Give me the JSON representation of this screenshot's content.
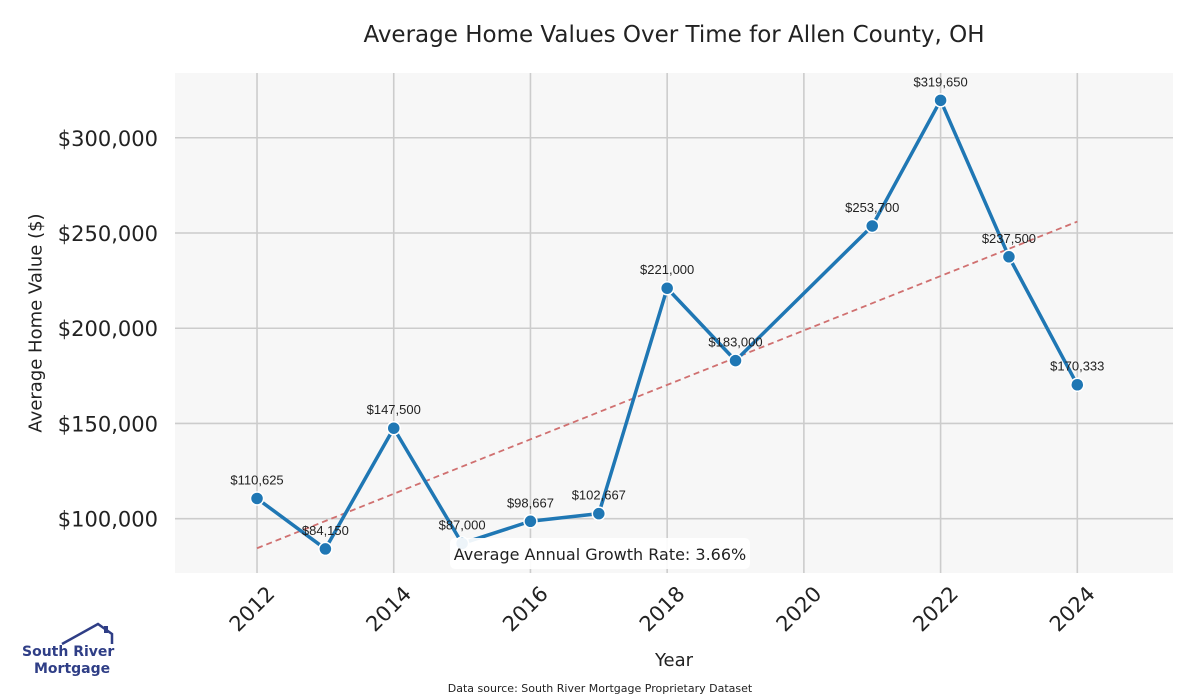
{
  "chart_data": {
    "type": "line",
    "title": "Average Home Values Over Time for Allen County, OH",
    "xlabel": "Year",
    "ylabel": "Average Home Value ($)",
    "x": [
      2012,
      2013,
      2014,
      2015,
      2016,
      2017,
      2018,
      2019,
      2021,
      2022,
      2023,
      2024
    ],
    "series": [
      {
        "values": [
          110625,
          84150,
          147500,
          87000,
          98667,
          102667,
          221000,
          183000,
          253700,
          319650,
          237500,
          170333
        ],
        "data_labels": [
          "$110,625",
          "$84,150",
          "$147,500",
          "$87,000",
          "$98,667",
          "$102,667",
          "$221,000",
          "$183,000",
          "$253,700",
          "$319,650",
          "$237,500",
          "$170,333"
        ],
        "color": "#1f77b4"
      }
    ],
    "trendline": {
      "x_start": 2012,
      "y_start": 84500,
      "x_end": 2024,
      "y_end": 256000,
      "color": "#d07070"
    },
    "xlim": [
      2010.8,
      2025.4
    ],
    "ylim": [
      71500,
      334000
    ],
    "x_ticks": [
      2012,
      2014,
      2016,
      2018,
      2020,
      2022,
      2024
    ],
    "x_tick_labels": [
      "2012",
      "2014",
      "2016",
      "2018",
      "2020",
      "2022",
      "2024"
    ],
    "y_ticks": [
      100000,
      150000,
      200000,
      250000,
      300000
    ],
    "y_tick_labels": [
      "$100,000",
      "$150,000",
      "$200,000",
      "$250,000",
      "$300,000"
    ],
    "annotation": "Average Annual Growth Rate: 3.66%",
    "grid": true,
    "plot_background": "#f7f7f7",
    "grid_color": "#cccccc"
  },
  "source_text": "Data source: South River Mortgage Proprietary Dataset",
  "logo": {
    "line1": "South River",
    "line2": "Mortgage",
    "color": "#2f3e86"
  }
}
